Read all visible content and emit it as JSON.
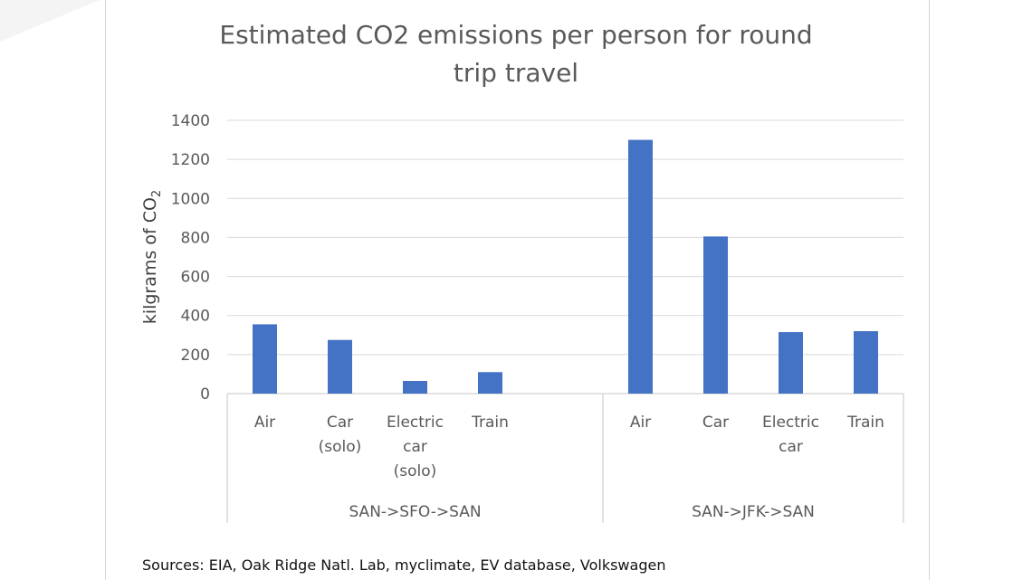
{
  "chart_data": {
    "type": "bar",
    "title": [
      "Estimated CO2 emissions per person for round",
      "trip travel"
    ],
    "ylabel": "kilgrams of CO",
    "ylabel_subscript": "2",
    "xlabel": "",
    "ylim": [
      0,
      1400
    ],
    "yticks": [
      0,
      200,
      400,
      600,
      800,
      1000,
      1200,
      1400
    ],
    "grid": true,
    "groups": [
      {
        "name": "SAN->SFO->SAN",
        "categories": [
          {
            "label": [
              "Air"
            ],
            "value": 355
          },
          {
            "label": [
              "Car",
              "(solo)"
            ],
            "value": 275
          },
          {
            "label": [
              "Electric",
              "car",
              "(solo)"
            ],
            "value": 65
          },
          {
            "label": [
              "Train"
            ],
            "value": 110
          }
        ]
      },
      {
        "name": "SAN->JFK->SAN",
        "categories": [
          {
            "label": [
              "Air"
            ],
            "value": 1300
          },
          {
            "label": [
              "Car"
            ],
            "value": 805
          },
          {
            "label": [
              "Electric",
              "car"
            ],
            "value": 315
          },
          {
            "label": [
              "Train"
            ],
            "value": 320
          }
        ]
      }
    ],
    "colors": {
      "bar": "#4472c4",
      "grid": "#d9d9d9",
      "axis": "#d9d9d9"
    }
  },
  "source": "Sources: EIA, Oak Ridge Natl. Lab, myclimate, EV database, Volkswagen"
}
